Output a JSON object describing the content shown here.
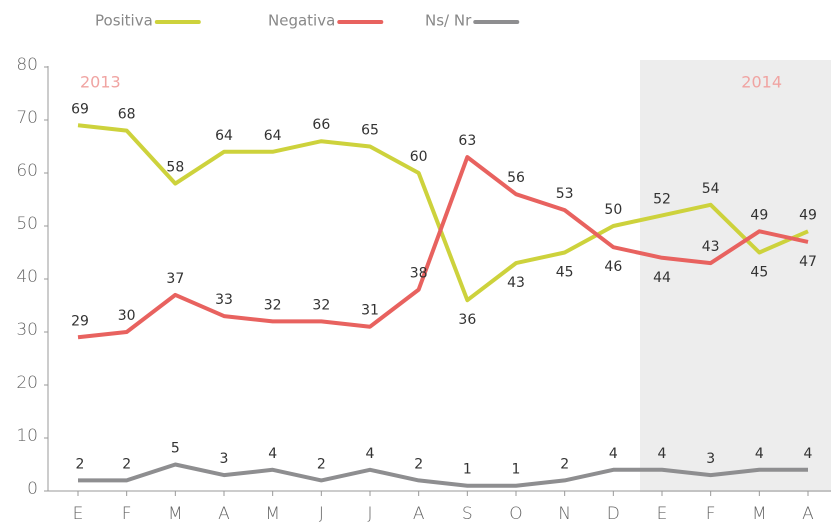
{
  "chart_data": {
    "type": "line",
    "categories": [
      "E",
      "F",
      "M",
      "A",
      "M",
      "J",
      "J",
      "A",
      "S",
      "O",
      "N",
      "D",
      "E",
      "F",
      "M",
      "A"
    ],
    "series": [
      {
        "name": "Positiva",
        "color": "#cdd23c",
        "values": [
          69,
          68,
          58,
          64,
          64,
          66,
          65,
          60,
          36,
          43,
          45,
          50,
          52,
          54,
          45,
          49
        ]
      },
      {
        "name": "Negativa",
        "color": "#e8625f",
        "values": [
          29,
          30,
          37,
          33,
          32,
          32,
          31,
          38,
          63,
          56,
          53,
          46,
          44,
          43,
          49,
          47
        ]
      },
      {
        "name": "Ns/ Nr",
        "color": "#8e8e90",
        "values": [
          2,
          2,
          5,
          3,
          4,
          2,
          4,
          2,
          1,
          1,
          2,
          4,
          4,
          3,
          4,
          4
        ]
      }
    ],
    "annotations": [
      "2013",
      "2014"
    ],
    "ylim": [
      0,
      80
    ],
    "yticks": [
      0,
      10,
      20,
      30,
      40,
      50,
      60,
      70,
      80
    ],
    "grid": false,
    "legend": "top"
  }
}
